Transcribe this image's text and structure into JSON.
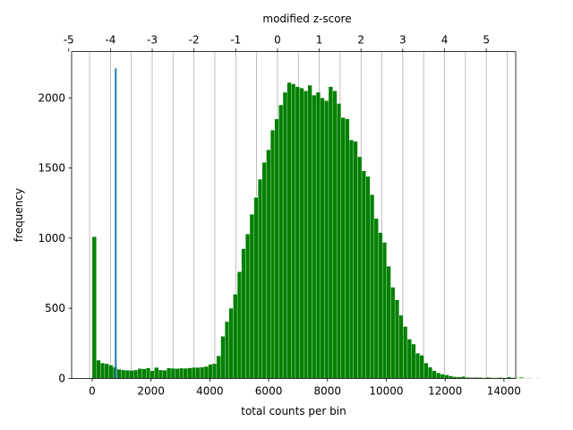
{
  "chart_data": {
    "type": "bar",
    "xlabel": "total counts per bin",
    "ylabel": "frequency",
    "top_xlabel": "modified z-score",
    "xlim": [
      -700,
      14400
    ],
    "ylim": [
      0,
      2330
    ],
    "x_ticks": [
      "0",
      "2000",
      "4000",
      "6000",
      "8000",
      "10000",
      "12000",
      "14000"
    ],
    "x_tick_values": [
      0,
      2000,
      4000,
      6000,
      8000,
      10000,
      12000,
      14000
    ],
    "y_ticks": [
      "0",
      "500",
      "1000",
      "1500",
      "2000"
    ],
    "y_tick_values": [
      0,
      500,
      1000,
      1500,
      2000
    ],
    "top_ticks": [
      "-5",
      "-4",
      "-3",
      "-2",
      "-1",
      "0",
      "1",
      "2",
      "3",
      "4",
      "5"
    ],
    "top_tick_values": [
      -5,
      -4,
      -3,
      -2,
      -1,
      0,
      1,
      2,
      3,
      4,
      5
    ],
    "zscore_to_counts": {
      "z0_counts": 6300,
      "counts_per_z": 1420
    },
    "vertical_grid_z_step": 0.5,
    "grid": "vertical",
    "bin_width": 141,
    "bin_start": 0,
    "bar_color": "#008000",
    "marker_color": "#1f77b4",
    "marker": {
      "x": 800,
      "y": 2210
    },
    "values": [
      1010,
      130,
      110,
      105,
      95,
      80,
      65,
      60,
      58,
      57,
      60,
      70,
      68,
      75,
      55,
      78,
      60,
      58,
      75,
      72,
      70,
      73,
      72,
      75,
      78,
      78,
      80,
      85,
      100,
      105,
      160,
      300,
      405,
      500,
      600,
      760,
      925,
      1030,
      1170,
      1290,
      1420,
      1540,
      1630,
      1770,
      1850,
      1950,
      2040,
      2110,
      2100,
      2080,
      2070,
      2050,
      2090,
      2020,
      2040,
      2000,
      1980,
      2080,
      2050,
      1960,
      1860,
      1850,
      1700,
      1690,
      1580,
      1480,
      1440,
      1310,
      1140,
      1040,
      970,
      800,
      650,
      560,
      450,
      370,
      280,
      245,
      180,
      165,
      110,
      80,
      55,
      40,
      30,
      25,
      18,
      12,
      10,
      14,
      8,
      6,
      8,
      6,
      5,
      8,
      5,
      5,
      6,
      4,
      10,
      5,
      5,
      8,
      3,
      4,
      2,
      3,
      1,
      2
    ]
  }
}
